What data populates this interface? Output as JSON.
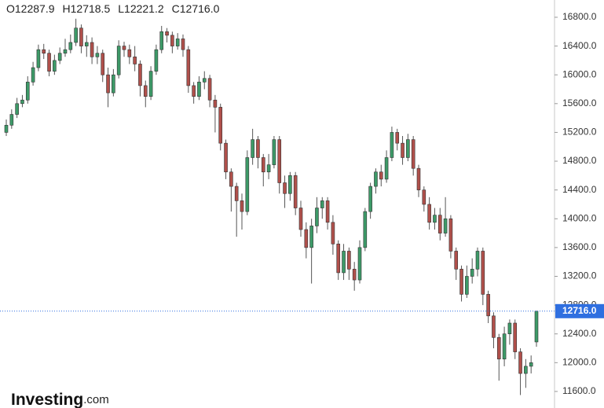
{
  "chart_data": {
    "type": "candlestick",
    "header": [
      {
        "prefix": "O",
        "value": "12287.9"
      },
      {
        "prefix": "H",
        "value": "12718.5"
      },
      {
        "prefix": "L",
        "value": "12221.2"
      },
      {
        "prefix": "C",
        "value": "12716.0"
      }
    ],
    "logo": {
      "name": "Investing",
      "suffix": ".com"
    },
    "up_color": "#3d9a68",
    "down_color": "#b0504b",
    "ylim": [
      11370,
      17040
    ],
    "yticks": [
      {
        "value": 11600,
        "label": "11600.0"
      },
      {
        "value": 12000,
        "label": "12000.0"
      },
      {
        "value": 12400,
        "label": "12400.0"
      },
      {
        "value": 12800,
        "label": "12800.0"
      },
      {
        "value": 13200,
        "label": "13200.0"
      },
      {
        "value": 13600,
        "label": "13600.0"
      },
      {
        "value": 14000,
        "label": "14000.0"
      },
      {
        "value": 14400,
        "label": "14400.0"
      },
      {
        "value": 14800,
        "label": "14800.0"
      },
      {
        "value": 15200,
        "label": "15200.0"
      },
      {
        "value": 15600,
        "label": "15600.0"
      },
      {
        "value": 16000,
        "label": "16000.0"
      },
      {
        "value": 16400,
        "label": "16400.0"
      },
      {
        "value": 16800,
        "label": "16800.0"
      }
    ],
    "last_price": {
      "value": 12716,
      "label": "12716.0",
      "color": "#2f6fe0"
    },
    "open": [
      15200,
      15300,
      15450,
      15600,
      15650,
      15900,
      16100,
      16350,
      16300,
      16050,
      16200,
      16300,
      16350,
      16450,
      16650,
      16400,
      16450,
      16250,
      16300,
      16000,
      15750,
      16000,
      16400,
      16350,
      16250,
      16150,
      15850,
      15700,
      16050,
      16350,
      16600,
      16550,
      16400,
      16500,
      16350,
      15850,
      15700,
      15900,
      15950,
      15650,
      15550,
      15050,
      14650,
      14450,
      14250,
      14100,
      14850,
      15100,
      14850,
      14650,
      14750,
      15100,
      14500,
      14350,
      14600,
      14150,
      13850,
      13600,
      13900,
      14150,
      14250,
      13950,
      13650,
      13250,
      13550,
      13300,
      13150,
      13600,
      14100,
      14450,
      14650,
      14550,
      14850,
      15200,
      15050,
      14850,
      15100,
      14700,
      14400,
      14200,
      13950,
      14050,
      13800,
      14000,
      13550,
      13300,
      12950,
      13200,
      13300,
      13550,
      12950,
      12650,
      12350,
      12050,
      12400,
      12550,
      12150,
      11850,
      11950,
      12287.9
    ],
    "high": [
      15380,
      15520,
      15680,
      15720,
      15980,
      16180,
      16420,
      16430,
      16350,
      16280,
      16380,
      16500,
      16560,
      16780,
      16700,
      16550,
      16520,
      16400,
      16350,
      16100,
      16080,
      16480,
      16460,
      16420,
      16400,
      16200,
      15920,
      16120,
      16420,
      16680,
      16650,
      16600,
      16580,
      16560,
      16400,
      15900,
      15980,
      16050,
      16000,
      15720,
      15600,
      15100,
      14700,
      14500,
      14350,
      14950,
      15250,
      15150,
      14900,
      14900,
      15150,
      15150,
      14600,
      14650,
      14650,
      14250,
      13950,
      14000,
      14300,
      14300,
      14300,
      14050,
      13700,
      13650,
      13600,
      13400,
      13700,
      14150,
      14500,
      14700,
      14750,
      14950,
      15280,
      15250,
      15150,
      15180,
      15150,
      14750,
      14450,
      14300,
      14150,
      14150,
      14300,
      14050,
      13600,
      13350,
      13350,
      13450,
      13600,
      13600,
      13000,
      12700,
      12400,
      12500,
      12600,
      12600,
      12200,
      12050,
      12100,
      12718.5
    ],
    "low": [
      15150,
      15250,
      15400,
      15550,
      15600,
      15850,
      16050,
      16220,
      15980,
      16000,
      16150,
      16250,
      16300,
      16400,
      16300,
      16250,
      16150,
      16150,
      15900,
      15550,
      15700,
      15950,
      16250,
      16150,
      16050,
      15700,
      15550,
      15650,
      16000,
      16300,
      16450,
      16300,
      16350,
      16250,
      15750,
      15600,
      15650,
      15800,
      15550,
      15200,
      14950,
      14550,
      14100,
      13750,
      13850,
      14050,
      14750,
      14700,
      14450,
      14550,
      14700,
      14350,
      14150,
      14250,
      14050,
      13750,
      13450,
      13100,
      13800,
      14000,
      13850,
      13500,
      13150,
      13150,
      13150,
      13000,
      13100,
      13550,
      14000,
      14350,
      14450,
      14500,
      14800,
      14950,
      14750,
      14800,
      14600,
      14300,
      14100,
      13850,
      13850,
      13700,
      13750,
      13450,
      13150,
      12850,
      12900,
      13100,
      13200,
      12800,
      12550,
      12200,
      11750,
      11950,
      12250,
      12050,
      11550,
      11650,
      11850,
      12221.2
    ],
    "close": [
      15300,
      15450,
      15600,
      15650,
      15900,
      16100,
      16350,
      16300,
      16050,
      16200,
      16300,
      16350,
      16450,
      16650,
      16400,
      16450,
      16250,
      16300,
      16000,
      15750,
      16000,
      16400,
      16350,
      16250,
      16150,
      15850,
      15700,
      16050,
      16350,
      16600,
      16550,
      16400,
      16500,
      16350,
      15850,
      15700,
      15900,
      15950,
      15650,
      15550,
      15050,
      14650,
      14450,
      14250,
      14100,
      14850,
      15100,
      14850,
      14650,
      14750,
      15100,
      14500,
      14350,
      14600,
      14150,
      13850,
      13600,
      13900,
      14150,
      14250,
      13950,
      13650,
      13250,
      13550,
      13300,
      13150,
      13600,
      14100,
      14450,
      14650,
      14550,
      14850,
      15200,
      15050,
      14850,
      15100,
      14700,
      14400,
      14200,
      13950,
      14050,
      13800,
      14000,
      13550,
      13300,
      12950,
      13200,
      13300,
      13550,
      12950,
      12650,
      12350,
      12050,
      12400,
      12550,
      12150,
      11850,
      11950,
      12000,
      12716
    ]
  }
}
